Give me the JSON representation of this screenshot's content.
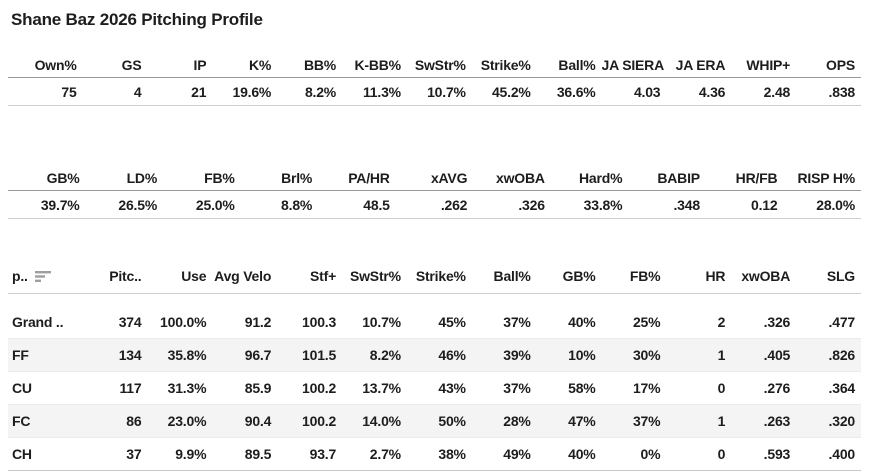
{
  "page": {
    "title": "Shane Baz 2026 Pitching Profile"
  },
  "colors": {
    "text": "#1d1d1d",
    "stripe": "#f4f4f4",
    "sort_icon": "#9e9e9e",
    "header_rule": "#9a9a9a",
    "row_rule": "#cfcfcf"
  },
  "summary_table_1": {
    "columns": [
      "Own%",
      "GS",
      "IP",
      "K%",
      "BB%",
      "K-BB%",
      "SwStr%",
      "Strike%",
      "Ball%",
      "JA SIERA",
      "JA ERA",
      "WHIP+",
      "OPS"
    ],
    "values": [
      "75",
      "4",
      "21",
      "19.6%",
      "8.2%",
      "11.3%",
      "10.7%",
      "45.2%",
      "36.6%",
      "4.03",
      "4.36",
      "2.48",
      ".838"
    ]
  },
  "summary_table_2": {
    "columns": [
      "GB%",
      "LD%",
      "FB%",
      "Brl%",
      "PA/HR",
      "xAVG",
      "xwOBA",
      "Hard%",
      "BABIP",
      "HR/FB",
      "RISP H%"
    ],
    "values": [
      "39.7%",
      "26.5%",
      "25.0%",
      "8.8%",
      "48.5",
      ".262",
      ".326",
      "33.8%",
      ".348",
      "0.12",
      "28.0%"
    ]
  },
  "pitch_table": {
    "columns": [
      "p..",
      "Pitc..",
      "Use",
      "Avg Velo",
      "Stf+",
      "SwStr%",
      "Strike%",
      "Ball%",
      "GB%",
      "FB%",
      "HR",
      "xwOBA",
      "SLG"
    ],
    "sort_icon": "sort-descending",
    "rows": [
      [
        "Grand ..",
        "374",
        "100.0%",
        "91.2",
        "100.3",
        "10.7%",
        "45%",
        "37%",
        "40%",
        "25%",
        "2",
        ".326",
        ".477"
      ],
      [
        "FF",
        "134",
        "35.8%",
        "96.7",
        "101.5",
        "8.2%",
        "46%",
        "39%",
        "10%",
        "30%",
        "1",
        ".405",
        ".826"
      ],
      [
        "CU",
        "117",
        "31.3%",
        "85.9",
        "100.2",
        "13.7%",
        "43%",
        "37%",
        "58%",
        "17%",
        "0",
        ".276",
        ".364"
      ],
      [
        "FC",
        "86",
        "23.0%",
        "90.4",
        "100.2",
        "14.0%",
        "50%",
        "28%",
        "47%",
        "37%",
        "1",
        ".263",
        ".320"
      ],
      [
        "CH",
        "37",
        "9.9%",
        "89.5",
        "93.7",
        "2.7%",
        "38%",
        "49%",
        "40%",
        "0%",
        "0",
        ".593",
        ".400"
      ]
    ]
  }
}
